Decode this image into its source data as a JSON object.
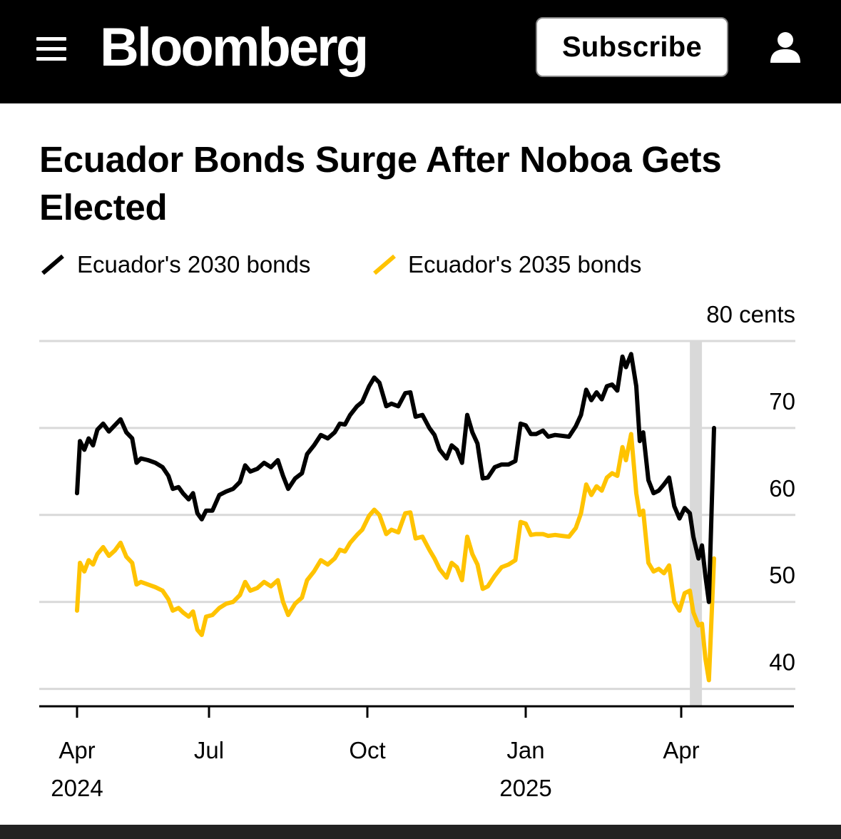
{
  "header": {
    "logo": "Bloomberg",
    "subscribe_label": "Subscribe",
    "menu_icon": "hamburger-menu-icon",
    "user_icon": "user-account-icon"
  },
  "article": {
    "title": "Ecuador Bonds Surge After Noboa Gets Elected"
  },
  "colors": {
    "series_2030": "#000000",
    "series_2035": "#ffc300",
    "grid": "#d9d9d9",
    "highlight": "#d9d9d9"
  },
  "chart_data": {
    "type": "line",
    "title": "Ecuador Bonds Surge After Noboa Gets Elected",
    "unit_label": "80 cents",
    "ylim": [
      38,
      80
    ],
    "y_ticks": [
      {
        "value": 70,
        "label": "70"
      },
      {
        "value": 60,
        "label": "60"
      },
      {
        "value": 50,
        "label": "50"
      },
      {
        "value": 40,
        "label": "40"
      }
    ],
    "x_ticks": [
      {
        "date": "2024-04-01",
        "label": "Apr",
        "year": "2024"
      },
      {
        "date": "2024-07-01",
        "label": "Jul",
        "year": ""
      },
      {
        "date": "2024-10-01",
        "label": "Oct",
        "year": ""
      },
      {
        "date": "2025-01-01",
        "label": "Jan",
        "year": "2025"
      },
      {
        "date": "2025-04-01",
        "label": "Apr",
        "year": ""
      }
    ],
    "x_range": [
      "2024-03-10",
      "2025-05-15"
    ],
    "highlight_range": [
      "2025-04-06",
      "2025-04-13"
    ],
    "legend_position": "top",
    "grid": true,
    "series": [
      {
        "name": "Ecuador's 2030 bonds",
        "points": [
          [
            "2024-04-01",
            62.5
          ],
          [
            "2024-04-03",
            68.5
          ],
          [
            "2024-04-06",
            67.5
          ],
          [
            "2024-04-09",
            68.8
          ],
          [
            "2024-04-12",
            68.0
          ],
          [
            "2024-04-15",
            69.8
          ],
          [
            "2024-04-19",
            70.5
          ],
          [
            "2024-04-23",
            69.6
          ],
          [
            "2024-04-27",
            70.3
          ],
          [
            "2024-05-01",
            71.0
          ],
          [
            "2024-05-05",
            69.5
          ],
          [
            "2024-05-09",
            68.8
          ],
          [
            "2024-05-12",
            66.0
          ],
          [
            "2024-05-15",
            66.5
          ],
          [
            "2024-05-20",
            66.3
          ],
          [
            "2024-05-25",
            66.0
          ],
          [
            "2024-05-30",
            65.5
          ],
          [
            "2024-06-03",
            64.5
          ],
          [
            "2024-06-06",
            63.0
          ],
          [
            "2024-06-10",
            63.2
          ],
          [
            "2024-06-13",
            62.5
          ],
          [
            "2024-06-17",
            61.8
          ],
          [
            "2024-06-20",
            62.5
          ],
          [
            "2024-06-23",
            60.2
          ],
          [
            "2024-06-26",
            59.5
          ],
          [
            "2024-06-29",
            60.5
          ],
          [
            "2024-07-03",
            60.5
          ],
          [
            "2024-07-07",
            62.3
          ],
          [
            "2024-07-11",
            62.7
          ],
          [
            "2024-07-15",
            63.0
          ],
          [
            "2024-07-19",
            63.8
          ],
          [
            "2024-07-22",
            65.7
          ],
          [
            "2024-07-25",
            65.0
          ],
          [
            "2024-07-29",
            65.3
          ],
          [
            "2024-08-02",
            66.0
          ],
          [
            "2024-08-06",
            65.5
          ],
          [
            "2024-08-10",
            66.3
          ],
          [
            "2024-08-13",
            64.5
          ],
          [
            "2024-08-16",
            63.0
          ],
          [
            "2024-08-20",
            64.2
          ],
          [
            "2024-08-24",
            64.8
          ],
          [
            "2024-08-27",
            67.0
          ],
          [
            "2024-08-31",
            68.0
          ],
          [
            "2024-09-04",
            69.2
          ],
          [
            "2024-09-08",
            68.8
          ],
          [
            "2024-09-12",
            69.5
          ],
          [
            "2024-09-15",
            70.5
          ],
          [
            "2024-09-18",
            70.4
          ],
          [
            "2024-09-21",
            71.5
          ],
          [
            "2024-09-25",
            72.5
          ],
          [
            "2024-09-28",
            73.0
          ],
          [
            "2024-10-02",
            74.8
          ],
          [
            "2024-10-05",
            75.8
          ],
          [
            "2024-10-08",
            75.2
          ],
          [
            "2024-10-12",
            72.5
          ],
          [
            "2024-10-15",
            72.8
          ],
          [
            "2024-10-19",
            72.5
          ],
          [
            "2024-10-23",
            74.0
          ],
          [
            "2024-10-26",
            74.1
          ],
          [
            "2024-10-29",
            71.3
          ],
          [
            "2024-11-02",
            71.5
          ],
          [
            "2024-11-06",
            70.0
          ],
          [
            "2024-11-09",
            69.2
          ],
          [
            "2024-11-12",
            67.5
          ],
          [
            "2024-11-16",
            66.5
          ],
          [
            "2024-11-19",
            68.0
          ],
          [
            "2024-11-22",
            67.5
          ],
          [
            "2024-11-25",
            66.0
          ],
          [
            "2024-11-28",
            71.5
          ],
          [
            "2024-12-01",
            69.5
          ],
          [
            "2024-12-04",
            68.2
          ],
          [
            "2024-12-07",
            64.2
          ],
          [
            "2024-12-10",
            64.3
          ],
          [
            "2024-12-14",
            65.5
          ],
          [
            "2024-12-18",
            65.8
          ],
          [
            "2024-12-22",
            65.8
          ],
          [
            "2024-12-26",
            66.2
          ],
          [
            "2024-12-29",
            70.5
          ],
          [
            "2025-01-01",
            70.3
          ],
          [
            "2025-01-04",
            69.3
          ],
          [
            "2025-01-07",
            69.3
          ],
          [
            "2025-01-11",
            69.7
          ],
          [
            "2025-01-14",
            69.0
          ],
          [
            "2025-01-18",
            69.2
          ],
          [
            "2025-01-22",
            69.1
          ],
          [
            "2025-01-26",
            69.0
          ],
          [
            "2025-01-30",
            70.2
          ],
          [
            "2025-02-02",
            71.5
          ],
          [
            "2025-02-05",
            74.4
          ],
          [
            "2025-02-08",
            73.2
          ],
          [
            "2025-02-11",
            74.1
          ],
          [
            "2025-02-14",
            73.3
          ],
          [
            "2025-02-17",
            74.8
          ],
          [
            "2025-02-20",
            75.0
          ],
          [
            "2025-02-23",
            74.3
          ],
          [
            "2025-02-26",
            78.2
          ],
          [
            "2025-02-28",
            77.0
          ],
          [
            "2025-03-03",
            78.5
          ],
          [
            "2025-03-06",
            74.8
          ],
          [
            "2025-03-08",
            68.5
          ],
          [
            "2025-03-10",
            69.5
          ],
          [
            "2025-03-13",
            64.0
          ],
          [
            "2025-03-16",
            62.5
          ],
          [
            "2025-03-19",
            62.8
          ],
          [
            "2025-03-22",
            63.5
          ],
          [
            "2025-03-25",
            64.3
          ],
          [
            "2025-03-28",
            61.0
          ],
          [
            "2025-03-31",
            59.6
          ],
          [
            "2025-04-03",
            60.8
          ],
          [
            "2025-04-06",
            60.2
          ],
          [
            "2025-04-08",
            57.5
          ],
          [
            "2025-04-11",
            55.0
          ],
          [
            "2025-04-13",
            56.5
          ],
          [
            "2025-04-15",
            53.0
          ],
          [
            "2025-04-17",
            50.0
          ],
          [
            "2025-04-20",
            70.0
          ]
        ]
      },
      {
        "name": "Ecuador's 2035 bonds",
        "points": [
          [
            "2024-04-01",
            49.0
          ],
          [
            "2024-04-03",
            54.5
          ],
          [
            "2024-04-06",
            53.5
          ],
          [
            "2024-04-09",
            54.8
          ],
          [
            "2024-04-12",
            54.3
          ],
          [
            "2024-04-15",
            55.5
          ],
          [
            "2024-04-19",
            56.3
          ],
          [
            "2024-04-23",
            55.3
          ],
          [
            "2024-04-27",
            55.9
          ],
          [
            "2024-05-01",
            56.8
          ],
          [
            "2024-05-05",
            55.2
          ],
          [
            "2024-05-09",
            54.5
          ],
          [
            "2024-05-12",
            52.0
          ],
          [
            "2024-05-15",
            52.3
          ],
          [
            "2024-05-20",
            52.0
          ],
          [
            "2024-05-25",
            51.7
          ],
          [
            "2024-05-30",
            51.3
          ],
          [
            "2024-06-03",
            50.3
          ],
          [
            "2024-06-06",
            49.0
          ],
          [
            "2024-06-10",
            49.3
          ],
          [
            "2024-06-13",
            48.8
          ],
          [
            "2024-06-17",
            48.3
          ],
          [
            "2024-06-20",
            48.9
          ],
          [
            "2024-06-23",
            46.8
          ],
          [
            "2024-06-26",
            46.2
          ],
          [
            "2024-06-29",
            48.3
          ],
          [
            "2024-07-03",
            48.5
          ],
          [
            "2024-07-07",
            49.3
          ],
          [
            "2024-07-11",
            49.8
          ],
          [
            "2024-07-15",
            50.0
          ],
          [
            "2024-07-19",
            50.8
          ],
          [
            "2024-07-22",
            52.3
          ],
          [
            "2024-07-25",
            51.3
          ],
          [
            "2024-07-29",
            51.6
          ],
          [
            "2024-08-02",
            52.3
          ],
          [
            "2024-08-06",
            51.8
          ],
          [
            "2024-08-10",
            52.5
          ],
          [
            "2024-08-13",
            50.0
          ],
          [
            "2024-08-16",
            48.5
          ],
          [
            "2024-08-20",
            49.8
          ],
          [
            "2024-08-24",
            50.5
          ],
          [
            "2024-08-27",
            52.5
          ],
          [
            "2024-08-31",
            53.5
          ],
          [
            "2024-09-04",
            54.8
          ],
          [
            "2024-09-08",
            54.3
          ],
          [
            "2024-09-12",
            55.0
          ],
          [
            "2024-09-15",
            56.0
          ],
          [
            "2024-09-18",
            55.8
          ],
          [
            "2024-09-21",
            56.8
          ],
          [
            "2024-09-25",
            57.7
          ],
          [
            "2024-09-28",
            58.3
          ],
          [
            "2024-10-02",
            59.9
          ],
          [
            "2024-10-05",
            60.6
          ],
          [
            "2024-10-08",
            60.0
          ],
          [
            "2024-10-12",
            57.8
          ],
          [
            "2024-10-15",
            58.3
          ],
          [
            "2024-10-19",
            58.0
          ],
          [
            "2024-10-23",
            60.2
          ],
          [
            "2024-10-26",
            60.3
          ],
          [
            "2024-10-29",
            57.3
          ],
          [
            "2024-11-02",
            57.5
          ],
          [
            "2024-11-06",
            56.0
          ],
          [
            "2024-11-09",
            55.0
          ],
          [
            "2024-11-12",
            53.8
          ],
          [
            "2024-11-16",
            52.8
          ],
          [
            "2024-11-19",
            54.5
          ],
          [
            "2024-11-22",
            54.0
          ],
          [
            "2024-11-25",
            52.5
          ],
          [
            "2024-11-28",
            57.5
          ],
          [
            "2024-12-01",
            55.5
          ],
          [
            "2024-12-04",
            54.3
          ],
          [
            "2024-12-07",
            51.5
          ],
          [
            "2024-12-10",
            51.8
          ],
          [
            "2024-12-14",
            53.0
          ],
          [
            "2024-12-18",
            54.0
          ],
          [
            "2024-12-22",
            54.3
          ],
          [
            "2024-12-26",
            54.8
          ],
          [
            "2024-12-29",
            59.2
          ],
          [
            "2025-01-01",
            59.0
          ],
          [
            "2025-01-04",
            57.7
          ],
          [
            "2025-01-07",
            57.8
          ],
          [
            "2025-01-11",
            57.8
          ],
          [
            "2025-01-14",
            57.6
          ],
          [
            "2025-01-18",
            57.7
          ],
          [
            "2025-01-22",
            57.6
          ],
          [
            "2025-01-26",
            57.5
          ],
          [
            "2025-01-30",
            58.5
          ],
          [
            "2025-02-02",
            60.2
          ],
          [
            "2025-02-05",
            63.5
          ],
          [
            "2025-02-08",
            62.3
          ],
          [
            "2025-02-11",
            63.3
          ],
          [
            "2025-02-14",
            62.8
          ],
          [
            "2025-02-17",
            64.3
          ],
          [
            "2025-02-20",
            64.8
          ],
          [
            "2025-02-23",
            64.5
          ],
          [
            "2025-02-26",
            67.8
          ],
          [
            "2025-02-28",
            66.3
          ],
          [
            "2025-03-03",
            69.3
          ],
          [
            "2025-03-06",
            62.5
          ],
          [
            "2025-03-08",
            60.0
          ],
          [
            "2025-03-10",
            60.5
          ],
          [
            "2025-03-13",
            54.5
          ],
          [
            "2025-03-16",
            53.5
          ],
          [
            "2025-03-19",
            53.8
          ],
          [
            "2025-03-22",
            53.3
          ],
          [
            "2025-03-25",
            54.2
          ],
          [
            "2025-03-28",
            50.0
          ],
          [
            "2025-03-31",
            49.0
          ],
          [
            "2025-04-03",
            51.0
          ],
          [
            "2025-04-06",
            51.3
          ],
          [
            "2025-04-08",
            48.8
          ],
          [
            "2025-04-11",
            47.3
          ],
          [
            "2025-04-13",
            47.5
          ],
          [
            "2025-04-15",
            43.5
          ],
          [
            "2025-04-17",
            41.0
          ],
          [
            "2025-04-20",
            55.0
          ]
        ]
      }
    ]
  }
}
